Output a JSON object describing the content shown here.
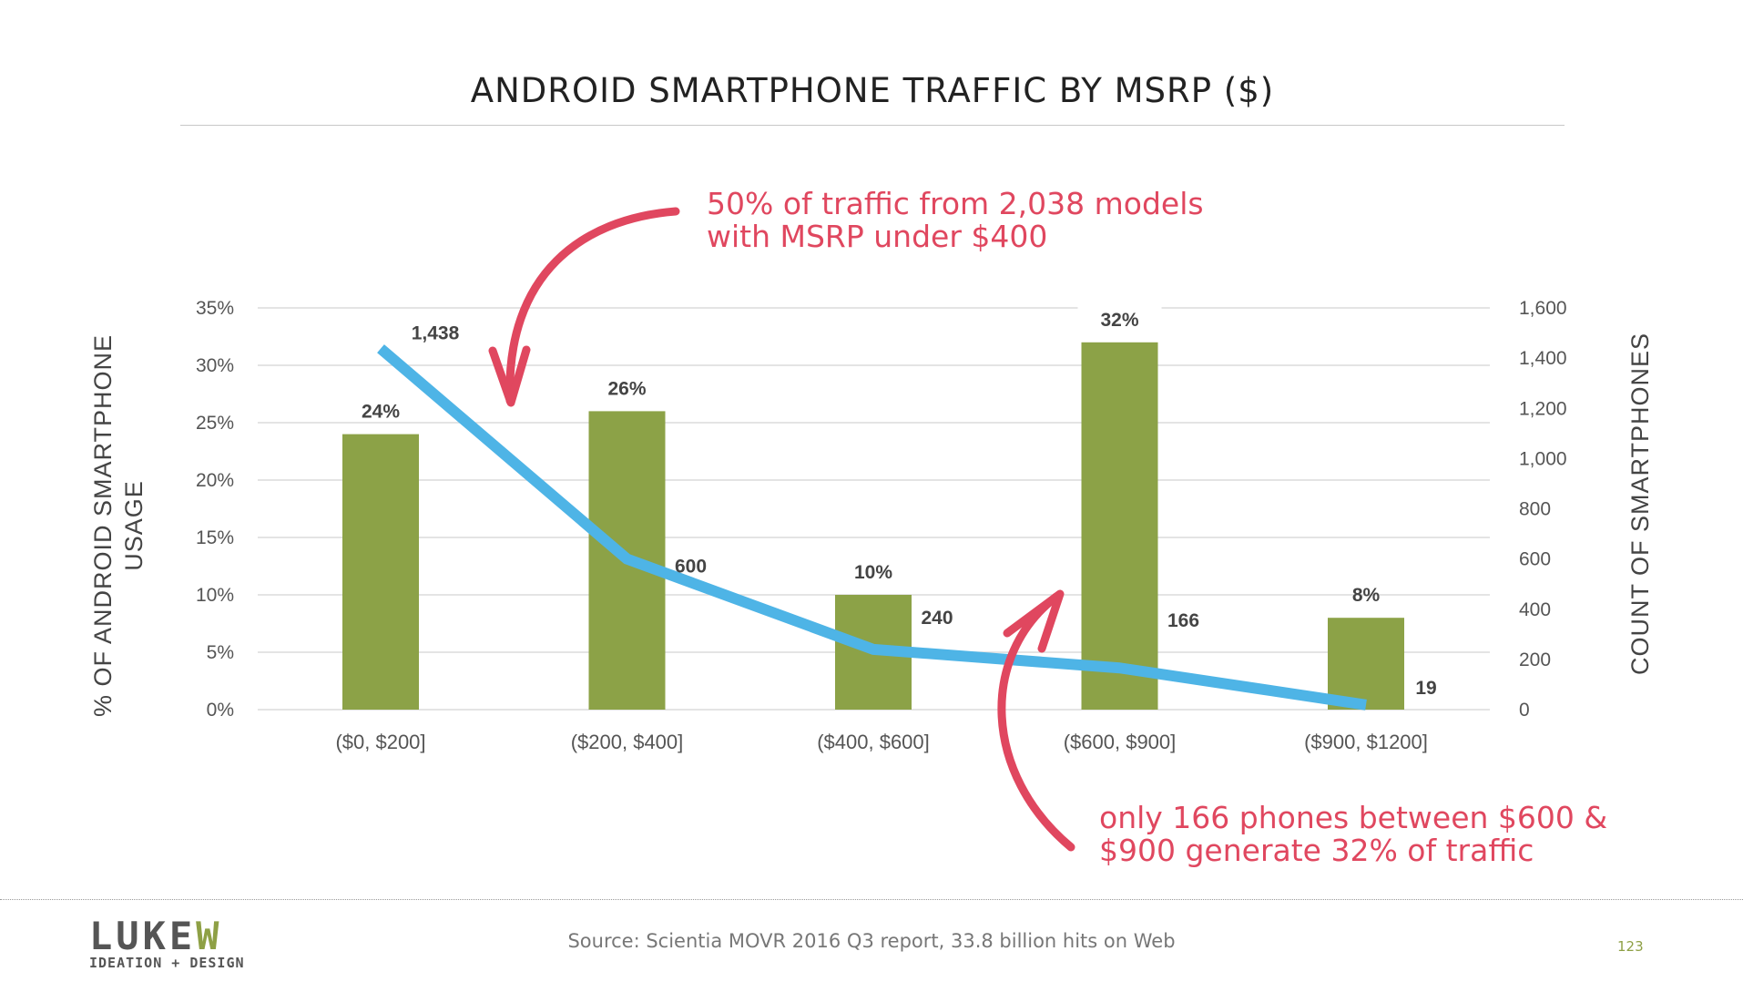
{
  "slide": {
    "title": "ANDROID SMARTPHONE TRAFFIC BY MSRP ($)",
    "callout_top": [
      "50% of traffic from 2,038 models",
      "with MSRP under $400"
    ],
    "callout_bottom": [
      "only 166 phones between $600 &",
      "$900 generate 32% of traffic"
    ],
    "source": "Source: Scientia MOVR 2016 Q3 report, 33.8 billion hits on Web",
    "page_number": "123",
    "logo": {
      "word_left": "LUKE",
      "word_right": "W",
      "tagline": "IDEATION + DESIGN"
    }
  },
  "colors": {
    "bar": "#8ca247",
    "line": "#4eb4e6",
    "accent": "#e0475f",
    "grid": "#dcdcdc",
    "text": "#333333"
  },
  "chart_data": {
    "type": "bar",
    "categories": [
      "($0, $200]",
      "($200, $400]",
      "($400, $600]",
      "($600, $900]",
      "($900, $1200]"
    ],
    "series": [
      {
        "type": "bar",
        "axis": "left",
        "values": [
          24,
          26,
          10,
          32,
          8
        ],
        "value_labels": [
          "24%",
          "26%",
          "10%",
          "32%",
          "8%"
        ]
      },
      {
        "type": "line",
        "axis": "right",
        "values": [
          1438,
          600,
          240,
          166,
          19
        ],
        "value_labels": [
          "1,438",
          "600",
          "240",
          "166",
          "19"
        ]
      }
    ],
    "ylabel": "% OF ANDROID SMARTPHONE USAGE",
    "y2label": "COUNT OF SMARTPHONES",
    "ylim": [
      0,
      35
    ],
    "y2lim": [
      0,
      1600
    ],
    "y_ticks": [
      "0%",
      "5%",
      "10%",
      "15%",
      "20%",
      "25%",
      "30%",
      "35%"
    ],
    "y2_ticks": [
      "0",
      "200",
      "400",
      "600",
      "800",
      "1,000",
      "1,200",
      "1,400",
      "1,600"
    ],
    "grid": true,
    "legend": "none"
  }
}
